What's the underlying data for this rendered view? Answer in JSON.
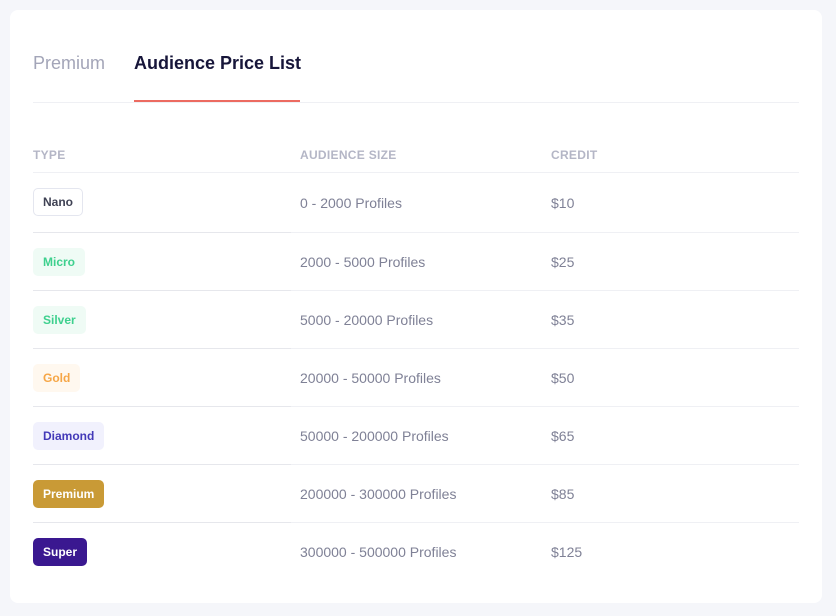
{
  "tabs": [
    {
      "label": "Premium",
      "active": false
    },
    {
      "label": "Audience Price List",
      "active": true
    }
  ],
  "table": {
    "headers": [
      "TYPE",
      "AUDIENCE SIZE",
      "CREDIT"
    ],
    "rows": [
      {
        "type": "Nano",
        "size": "0 - 2000 Profiles",
        "credit": "$10",
        "badge": {
          "bg": "#ffffff",
          "fg": "#3f4254",
          "border": "#e4e6ef"
        }
      },
      {
        "type": "Micro",
        "size": "2000 - 5000 Profiles",
        "credit": "$25",
        "badge": {
          "bg": "#effbf5",
          "fg": "#3ed08e",
          "border": "transparent"
        }
      },
      {
        "type": "Silver",
        "size": "5000 - 20000 Profiles",
        "credit": "$35",
        "badge": {
          "bg": "#effbf5",
          "fg": "#3ed08e",
          "border": "transparent"
        }
      },
      {
        "type": "Gold",
        "size": "20000 - 50000 Profiles",
        "credit": "$50",
        "badge": {
          "bg": "#fff8ef",
          "fg": "#f6a646",
          "border": "transparent"
        }
      },
      {
        "type": "Diamond",
        "size": "50000 - 200000 Profiles",
        "credit": "$65",
        "badge": {
          "bg": "#f1f1fd",
          "fg": "#4339b8",
          "border": "transparent"
        }
      },
      {
        "type": "Premium",
        "size": "200000 - 300000 Profiles",
        "credit": "$85",
        "badge": {
          "bg": "#c99a36",
          "fg": "#ffffff",
          "border": "transparent"
        }
      },
      {
        "type": "Super",
        "size": "300000 - 500000 Profiles",
        "credit": "$125",
        "badge": {
          "bg": "#3a1890",
          "fg": "#ffffff",
          "border": "transparent"
        }
      }
    ]
  }
}
